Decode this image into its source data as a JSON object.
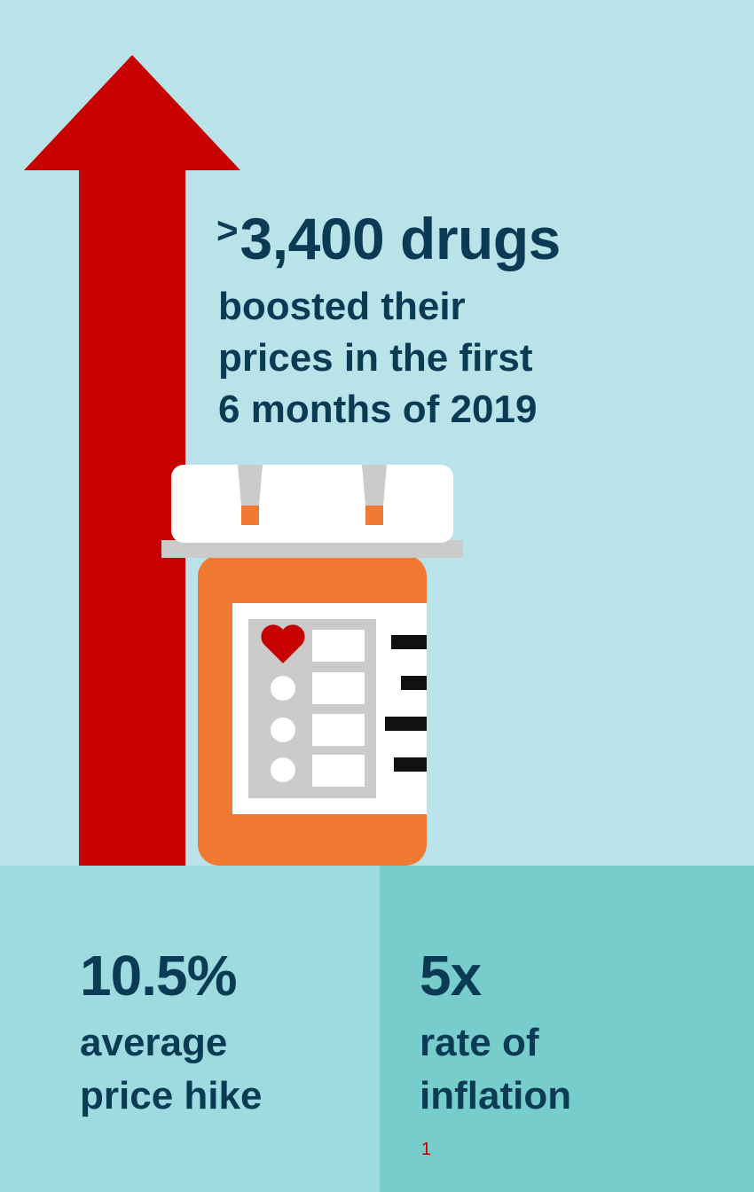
{
  "headline": {
    "prefix": ">",
    "count": "3,400 drugs",
    "lines": [
      "boosted their",
      "prices in the first",
      "6 months of 2019"
    ]
  },
  "stats": [
    {
      "value": "10.5%",
      "label_lines": [
        "average",
        "price hike"
      ]
    },
    {
      "value": "5x",
      "label_lines": [
        "rate of",
        "inflation"
      ],
      "footnote": "1"
    }
  ],
  "colors": {
    "background": "#b9e2e9",
    "arrow": "#c70000",
    "text": "#0b3a55",
    "bottle": "#f07a32",
    "panel_left": "#9ddbe0",
    "panel_right": "#76cdcb",
    "footnote": "#c00000"
  },
  "icons": [
    "up-arrow-icon",
    "pill-bottle-icon",
    "heart-icon"
  ]
}
